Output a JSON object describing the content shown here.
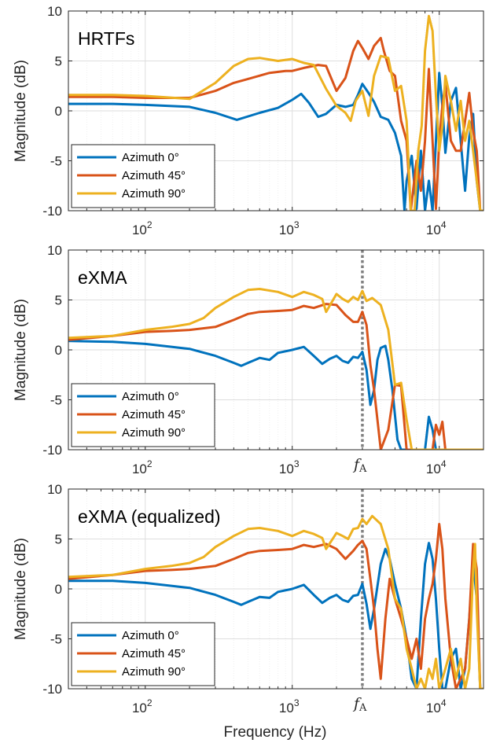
{
  "figure": {
    "xlabel": "Frequency (Hz)",
    "marker_label": "f",
    "marker_sub": "A"
  },
  "chart_data": [
    {
      "type": "line",
      "title": "HRTFs",
      "ylabel": "Magnitude (dB)",
      "xlabel": "",
      "xscale": "log",
      "xlim": [
        30,
        20000
      ],
      "ylim": [
        -10,
        10
      ],
      "yticks": [
        "10",
        "5",
        "0",
        "-5",
        "-10"
      ],
      "xticks": [
        {
          "base": "10",
          "exp": "2"
        },
        {
          "base": "10",
          "exp": "3"
        },
        {
          "base": "10",
          "exp": "4"
        }
      ],
      "grid": true,
      "legend_position": "bottom-left",
      "marker_x": null,
      "series": [
        {
          "name": "Azimuth 0°",
          "color": "#0072BD",
          "x": [
            30,
            60,
            100,
            200,
            300,
            420,
            600,
            800,
            1000,
            1150,
            1300,
            1500,
            1700,
            2000,
            2300,
            2600,
            2800,
            3000,
            3300,
            3600,
            4000,
            4500,
            5000,
            5500,
            5800,
            6000,
            6500,
            7000,
            7500,
            8000,
            8500,
            9000,
            9500,
            10000,
            10500,
            11000,
            12000,
            13000,
            14000,
            15000,
            16000,
            17000,
            18000,
            19000,
            20000
          ],
          "y": [
            0.7,
            0.7,
            0.6,
            0.4,
            -0.2,
            -0.9,
            -0.2,
            0.3,
            1.1,
            1.7,
            0.8,
            -0.6,
            -0.3,
            0.6,
            0.4,
            0.6,
            1.6,
            2.7,
            1.8,
            0.9,
            -0.6,
            -0.9,
            -2.2,
            -4.5,
            -10,
            -7,
            -4.5,
            -9.8,
            -4,
            -10,
            -7,
            -10,
            -3,
            3.8,
            0.5,
            -4.2,
            1,
            2.3,
            -3,
            -8,
            -2.6,
            -0.3,
            -7,
            -10,
            -10
          ]
        },
        {
          "name": "Azimuth 45°",
          "color": "#D95319",
          "x": [
            30,
            60,
            100,
            200,
            300,
            400,
            500,
            700,
            900,
            1000,
            1200,
            1500,
            1700,
            2000,
            2300,
            2600,
            2800,
            3000,
            3300,
            3600,
            4000,
            4200,
            4600,
            5000,
            5500,
            6000,
            6400,
            7000,
            7500,
            8000,
            8500,
            9000,
            9500,
            10000,
            10500,
            11000,
            12000,
            13000,
            14000,
            15000,
            16000,
            17000,
            18000,
            19000,
            20000
          ],
          "y": [
            1.4,
            1.4,
            1.3,
            1.3,
            2,
            2.8,
            3.2,
            3.8,
            4,
            4,
            4.3,
            4.6,
            4.5,
            2,
            3.3,
            6,
            7,
            6.3,
            5.2,
            6.5,
            7.3,
            6,
            4,
            3.5,
            -1,
            -3,
            -10,
            -5,
            -8,
            -3,
            4.2,
            -3,
            -9.8,
            -3,
            0.5,
            2.7,
            -3,
            -4,
            -4,
            -1,
            1.8,
            -2,
            -4,
            -10,
            -10
          ]
        },
        {
          "name": "Azimuth 90°",
          "color": "#EDB120",
          "x": [
            30,
            60,
            100,
            200,
            300,
            400,
            500,
            600,
            800,
            1000,
            1200,
            1400,
            1700,
            2000,
            2300,
            2500,
            2700,
            3000,
            3300,
            3600,
            4000,
            4500,
            5000,
            5500,
            6000,
            6400,
            6800,
            7200,
            7600,
            8000,
            8500,
            9000,
            9500,
            10000,
            10500,
            11000,
            12000,
            13000,
            14000,
            15000,
            16000,
            17000,
            18000,
            19000,
            20000
          ],
          "y": [
            1.6,
            1.6,
            1.5,
            1.2,
            2.8,
            4.5,
            5.2,
            5.3,
            5,
            5.2,
            4.8,
            4.6,
            2.2,
            0.5,
            -0.2,
            -1,
            1,
            2,
            -0.5,
            3.5,
            5.5,
            5.3,
            2,
            2.5,
            -1,
            -10,
            -10,
            -4,
            -1.5,
            6,
            9.5,
            8,
            1.5,
            -4,
            -1.5,
            3.5,
            1,
            -2,
            1,
            -3,
            -1,
            -4,
            -7,
            -10,
            -10
          ]
        }
      ]
    },
    {
      "type": "line",
      "title": "eXMA",
      "ylabel": "Magnitude (dB)",
      "xlabel": "",
      "xscale": "log",
      "xlim": [
        30,
        20000
      ],
      "ylim": [
        -10,
        10
      ],
      "yticks": [
        "10",
        "5",
        "0",
        "-5",
        "-10"
      ],
      "xticks": [
        {
          "base": "10",
          "exp": "2"
        },
        {
          "base": "10",
          "exp": "3"
        },
        {
          "base": "10",
          "exp": "4"
        }
      ],
      "grid": true,
      "legend_position": "bottom-left",
      "marker_x": 3000,
      "series": [
        {
          "name": "Azimuth 0°",
          "color": "#0072BD",
          "x": [
            30,
            60,
            100,
            200,
            300,
            400,
            450,
            500,
            600,
            700,
            800,
            1000,
            1200,
            1400,
            1600,
            1800,
            2000,
            2200,
            2400,
            2600,
            2800,
            3000,
            3200,
            3400,
            3600,
            3800,
            4000,
            4300,
            4500,
            4800,
            5200,
            5500,
            6000,
            7000,
            8000,
            8500,
            9000,
            9500,
            10000,
            11000,
            12000,
            14000,
            17000,
            20000
          ],
          "y": [
            0.9,
            0.8,
            0.6,
            0.1,
            -0.6,
            -1.3,
            -1.6,
            -1.3,
            -0.8,
            -1,
            -0.3,
            0,
            0.3,
            -0.6,
            -1.4,
            -0.9,
            -0.6,
            -1.1,
            -1.3,
            -0.7,
            -0.8,
            -0.2,
            -2,
            -5.5,
            -4,
            -1,
            0.2,
            0.4,
            -1,
            -4,
            -9,
            -10,
            -10,
            -10,
            -10,
            -6.7,
            -8,
            -10,
            -10,
            -10,
            -10,
            -10,
            -10,
            -10
          ]
        },
        {
          "name": "Azimuth 45°",
          "color": "#D95319",
          "x": [
            30,
            60,
            100,
            150,
            200,
            300,
            400,
            500,
            600,
            800,
            1000,
            1200,
            1400,
            1700,
            2000,
            2300,
            2600,
            2800,
            3000,
            3200,
            3400,
            3600,
            3800,
            4000,
            4500,
            5000,
            5500,
            6000,
            6500,
            7000,
            8000,
            9000,
            9500,
            10000,
            10500,
            11000,
            12000,
            15000,
            20000
          ],
          "y": [
            1,
            1.4,
            1.8,
            1.9,
            2,
            2.3,
            3,
            3.6,
            3.8,
            3.9,
            4,
            4.4,
            4.2,
            4.6,
            4.5,
            3.5,
            2.8,
            2.8,
            3.8,
            2.5,
            -1.5,
            -4,
            -7,
            -10,
            -8,
            -3.5,
            -3.6,
            -10,
            -10,
            -10,
            -10,
            -10,
            -7.5,
            -8.5,
            -7.2,
            -10,
            -10,
            -10,
            -10
          ]
        },
        {
          "name": "Azimuth 90°",
          "color": "#EDB120",
          "x": [
            30,
            60,
            100,
            150,
            200,
            250,
            300,
            400,
            500,
            600,
            800,
            1000,
            1200,
            1400,
            1600,
            1700,
            2000,
            2200,
            2400,
            2600,
            2800,
            3000,
            3200,
            3500,
            4000,
            4500,
            5000,
            5500,
            6000,
            6500,
            7000,
            8000,
            10000,
            20000
          ],
          "y": [
            1.2,
            1.4,
            2,
            2.3,
            2.6,
            3.2,
            4.2,
            5.3,
            6,
            6.1,
            5.8,
            5.3,
            5.8,
            5.5,
            5.1,
            3.8,
            5.6,
            5.1,
            4.8,
            5.3,
            5,
            5.9,
            4.9,
            5.2,
            4.5,
            2,
            -3.5,
            -3.3,
            -7,
            -10,
            -10,
            -10,
            -10,
            -10
          ]
        }
      ]
    },
    {
      "type": "line",
      "title": "eXMA (equalized)",
      "ylabel": "Magnitude (dB)",
      "xlabel": "Frequency (Hz)",
      "xscale": "log",
      "xlim": [
        30,
        20000
      ],
      "ylim": [
        -10,
        10
      ],
      "yticks": [
        "10",
        "5",
        "0",
        "-5",
        "-10"
      ],
      "xticks": [
        {
          "base": "10",
          "exp": "2"
        },
        {
          "base": "10",
          "exp": "3"
        },
        {
          "base": "10",
          "exp": "4"
        }
      ],
      "grid": true,
      "legend_position": "bottom-left",
      "marker_x": 3000,
      "series": [
        {
          "name": "Azimuth 0°",
          "color": "#0072BD",
          "x": [
            30,
            60,
            100,
            200,
            300,
            400,
            450,
            500,
            600,
            700,
            800,
            1000,
            1200,
            1400,
            1600,
            1800,
            2000,
            2200,
            2400,
            2600,
            2800,
            3000,
            3200,
            3400,
            3600,
            4000,
            4300,
            4600,
            5000,
            5500,
            6000,
            6500,
            7000,
            7500,
            8000,
            8500,
            9000,
            9500,
            10000,
            10500,
            11000,
            12000,
            13000,
            14000,
            15000,
            16000,
            17000,
            18000,
            19000,
            20000
          ],
          "y": [
            0.8,
            0.8,
            0.6,
            0.1,
            -0.6,
            -1.3,
            -1.6,
            -1.3,
            -0.8,
            -0.9,
            -0.3,
            0,
            0.4,
            -0.6,
            -1.4,
            -0.9,
            -0.6,
            -1.1,
            -1.3,
            -0.7,
            -0.6,
            0.5,
            -1.5,
            -4,
            -2,
            2.5,
            4,
            3,
            0.5,
            -2,
            -5,
            -9,
            -10,
            -3,
            2.5,
            4.6,
            3,
            -1,
            -6,
            -10,
            -10,
            -7,
            -6,
            -10,
            -8,
            -3,
            2.8,
            -1,
            -10,
            -10
          ]
        },
        {
          "name": "Azimuth 45°",
          "color": "#D95319",
          "x": [
            30,
            60,
            100,
            150,
            200,
            300,
            400,
            500,
            600,
            800,
            1000,
            1200,
            1400,
            1700,
            2000,
            2300,
            2600,
            2800,
            3000,
            3200,
            3400,
            3600,
            3800,
            4000,
            4300,
            4600,
            5000,
            5500,
            6000,
            6500,
            7000,
            7500,
            8000,
            8500,
            9000,
            9500,
            10000,
            10500,
            11000,
            12000,
            13000,
            14000,
            15000,
            16000,
            17000,
            18000,
            19000,
            20000
          ],
          "y": [
            1,
            1.4,
            1.8,
            1.9,
            2,
            2.3,
            3,
            3.6,
            3.8,
            3.9,
            4,
            4.4,
            4.2,
            4.5,
            4,
            3,
            3.8,
            4.4,
            4.8,
            4,
            1,
            -2,
            -6,
            -9,
            -3,
            1,
            -1,
            -3,
            -5,
            -7,
            -5,
            -8,
            -3,
            -1,
            0.5,
            3,
            6.5,
            4,
            -1,
            -7,
            -10,
            -9,
            -8,
            -3,
            4.5,
            2,
            -10,
            -10
          ]
        },
        {
          "name": "Azimuth 90°",
          "color": "#EDB120",
          "x": [
            30,
            60,
            100,
            150,
            200,
            250,
            300,
            400,
            500,
            600,
            800,
            1000,
            1200,
            1400,
            1600,
            1700,
            2000,
            2200,
            2400,
            2600,
            2800,
            3000,
            3200,
            3500,
            4000,
            4500,
            5000,
            5500,
            6000,
            6500,
            7000,
            7500,
            8000,
            8500,
            9000,
            9500,
            10000,
            10500,
            11000,
            12000,
            13000,
            14000,
            15000,
            16000,
            17000,
            17500,
            18000,
            19000,
            20000
          ],
          "y": [
            1.2,
            1.4,
            2,
            2.3,
            2.6,
            3.2,
            4.2,
            5.3,
            6,
            6.1,
            5.8,
            5.3,
            5.8,
            5.5,
            5.1,
            4,
            5.6,
            5.3,
            5,
            6,
            6.1,
            7,
            6.5,
            7.3,
            6.5,
            4,
            -1,
            -2,
            -6,
            -8,
            -10,
            -9,
            -10,
            -8,
            -9,
            -7,
            -10,
            -9,
            -8,
            -6,
            -9,
            -7,
            -10,
            -8,
            2,
            4.5,
            -2,
            -10,
            -10
          ]
        }
      ]
    }
  ]
}
